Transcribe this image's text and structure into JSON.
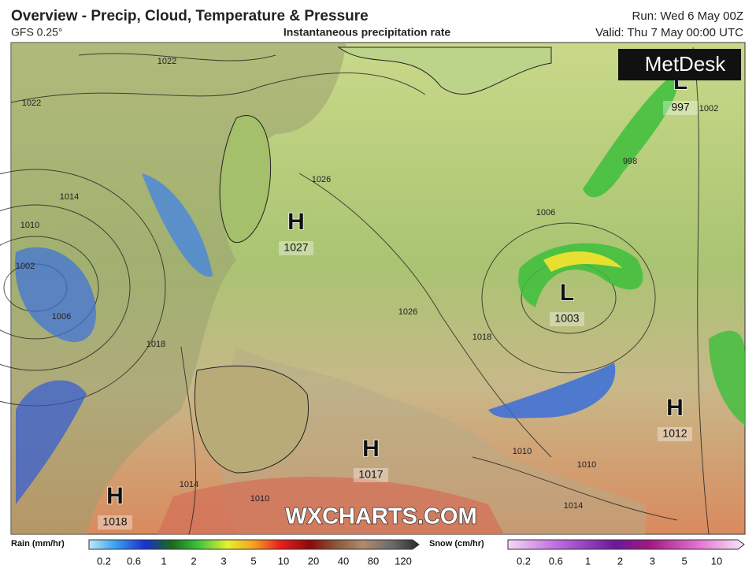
{
  "header": {
    "title": "Overview - Precip, Cloud, Temperature & Pressure",
    "model": "GFS 0.25°",
    "subtitle": "Instantaneous precipitation rate",
    "run": "Run: Wed 6 May 00Z",
    "valid": "Valid: Thu 7 May 00:00 UTC"
  },
  "logo": "MetDesk",
  "watermark": "WXCHARTS.COM",
  "pressure_centers": [
    {
      "symbol": "H",
      "value": "1027"
    },
    {
      "symbol": "L",
      "value": "1003"
    },
    {
      "symbol": "H",
      "value": "1012"
    },
    {
      "symbol": "H",
      "value": "1017"
    },
    {
      "symbol": "H",
      "value": "1018"
    },
    {
      "symbol": "L",
      "value": "997"
    }
  ],
  "isobar_labels": [
    "1022",
    "1022",
    "1014",
    "1010",
    "1002",
    "1006",
    "1018",
    "1014",
    "1010",
    "1026",
    "1026",
    "1006",
    "1002",
    "998",
    "1010",
    "1014",
    "1010",
    "1018"
  ],
  "rain_legend": {
    "label": "Rain (mm/hr)",
    "ticks": [
      0.2,
      0.6,
      1,
      2,
      3,
      5,
      10,
      20,
      40,
      80,
      120
    ]
  },
  "snow_legend": {
    "label": "Snow (cm/hr)",
    "ticks": [
      0.2,
      0.6,
      1,
      2,
      3,
      5,
      10
    ]
  }
}
